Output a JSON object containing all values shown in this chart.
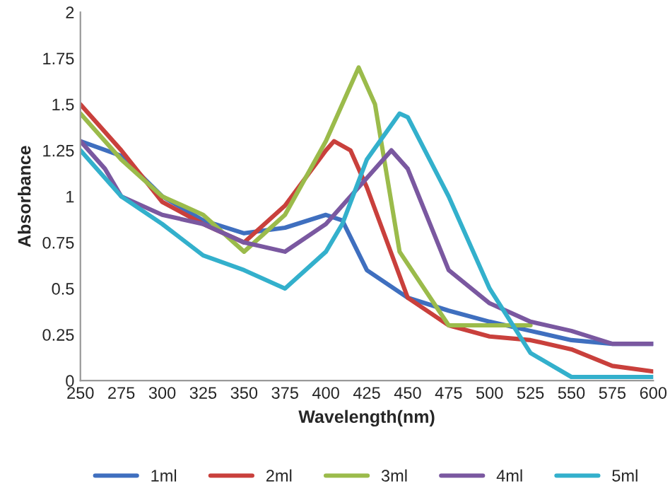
{
  "chart_data": {
    "type": "line",
    "xlabel": "Wavelength(nm)",
    "ylabel": "Absorbance",
    "xlim": [
      250,
      600
    ],
    "xticks": [
      250,
      275,
      300,
      325,
      350,
      375,
      400,
      425,
      450,
      475,
      500,
      525,
      550,
      575,
      600
    ],
    "ylim": [
      0,
      2
    ],
    "yticks": [
      0,
      0.25,
      0.5,
      0.75,
      1,
      1.25,
      1.5,
      1.75,
      2
    ],
    "grid": false,
    "legend": "bottom",
    "marker": "none",
    "line_style": "solid",
    "series": [
      {
        "name": "1ml",
        "color": "#3f6fbf",
        "x": [
          250,
          275,
          300,
          325,
          350,
          375,
          400,
          410,
          425,
          450,
          475,
          500,
          525,
          550,
          575,
          600
        ],
        "values": [
          1.3,
          1.22,
          1.0,
          0.87,
          0.8,
          0.83,
          0.9,
          0.87,
          0.6,
          0.45,
          0.38,
          0.32,
          0.27,
          0.22,
          0.2,
          0.2
        ]
      },
      {
        "name": "2ml",
        "color": "#c9403c",
        "x": [
          250,
          275,
          300,
          325,
          350,
          375,
          400,
          405,
          415,
          425,
          450,
          475,
          500,
          525,
          550,
          575,
          600
        ],
        "values": [
          1.5,
          1.25,
          0.97,
          0.85,
          0.75,
          0.95,
          1.25,
          1.3,
          1.25,
          1.05,
          0.45,
          0.3,
          0.24,
          0.22,
          0.17,
          0.08,
          0.05
        ]
      },
      {
        "name": "3ml",
        "color": "#9bbb4b",
        "x": [
          250,
          275,
          300,
          325,
          350,
          375,
          400,
          420,
          430,
          445,
          475,
          500,
          525
        ],
        "values": [
          1.45,
          1.2,
          1.0,
          0.9,
          0.7,
          0.9,
          1.3,
          1.7,
          1.5,
          0.7,
          0.3,
          0.3,
          0.3
        ]
      },
      {
        "name": "4ml",
        "color": "#7a58a0",
        "x": [
          250,
          265,
          275,
          300,
          325,
          350,
          375,
          400,
          425,
          440,
          450,
          475,
          500,
          525,
          550,
          575,
          600
        ],
        "values": [
          1.3,
          1.15,
          1.0,
          0.9,
          0.85,
          0.75,
          0.7,
          0.85,
          1.1,
          1.25,
          1.15,
          0.6,
          0.42,
          0.32,
          0.27,
          0.2,
          0.2
        ]
      },
      {
        "name": "5ml",
        "color": "#33b0cc",
        "x": [
          250,
          275,
          300,
          325,
          350,
          375,
          400,
          410,
          425,
          445,
          450,
          475,
          500,
          525,
          550,
          575,
          600
        ],
        "values": [
          1.25,
          1.0,
          0.85,
          0.68,
          0.6,
          0.5,
          0.7,
          0.85,
          1.2,
          1.45,
          1.43,
          1.0,
          0.5,
          0.15,
          0.02,
          0.02,
          0.02
        ]
      }
    ]
  }
}
